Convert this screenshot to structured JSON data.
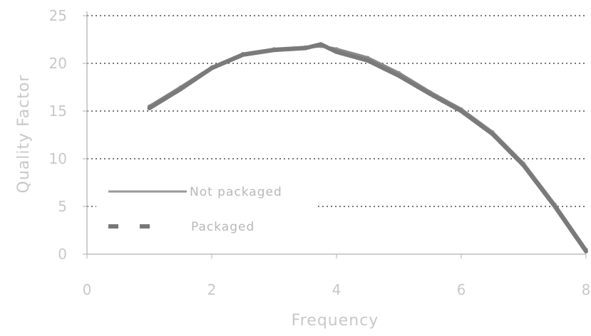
{
  "chart_data": {
    "type": "line",
    "title": "",
    "xlabel": "Frequency",
    "ylabel": "Quality Factor",
    "xlim": [
      0,
      8
    ],
    "ylim": [
      0,
      25
    ],
    "x_ticks": [
      "0",
      "2",
      "4",
      "6",
      "8"
    ],
    "y_ticks": [
      "0",
      "5",
      "10",
      "15",
      "20",
      "25"
    ],
    "grid": "horizontal dotted",
    "legend_position": "lower-left",
    "series": [
      {
        "name": "Not packaged",
        "style": "solid",
        "color": "#8a8a8a",
        "x": [
          1.0,
          1.5,
          2.0,
          2.5,
          3.0,
          3.5,
          3.75,
          4.0,
          4.5,
          5.0,
          5.5,
          6.0,
          6.5,
          7.0,
          7.5,
          8.0
        ],
        "y": [
          15.5,
          17.5,
          19.6,
          21.0,
          21.5,
          21.7,
          21.8,
          21.5,
          20.6,
          19.0,
          17.0,
          15.2,
          12.8,
          9.5,
          5.2,
          0.5
        ]
      },
      {
        "name": "Packaged",
        "style": "dashed",
        "color": "#7a7a7a",
        "x": [
          1.0,
          1.5,
          2.0,
          2.5,
          3.0,
          3.5,
          3.75,
          4.0,
          4.5,
          5.0,
          5.5,
          6.0,
          6.5,
          7.0,
          7.5,
          8.0
        ],
        "y": [
          15.3,
          17.3,
          19.5,
          20.9,
          21.4,
          21.6,
          22.0,
          21.2,
          20.3,
          18.7,
          16.8,
          15.0,
          12.6,
          9.3,
          5.0,
          0.3
        ]
      }
    ]
  },
  "legend": {
    "item1_label": "Not packaged",
    "item2_label": "Packaged"
  }
}
